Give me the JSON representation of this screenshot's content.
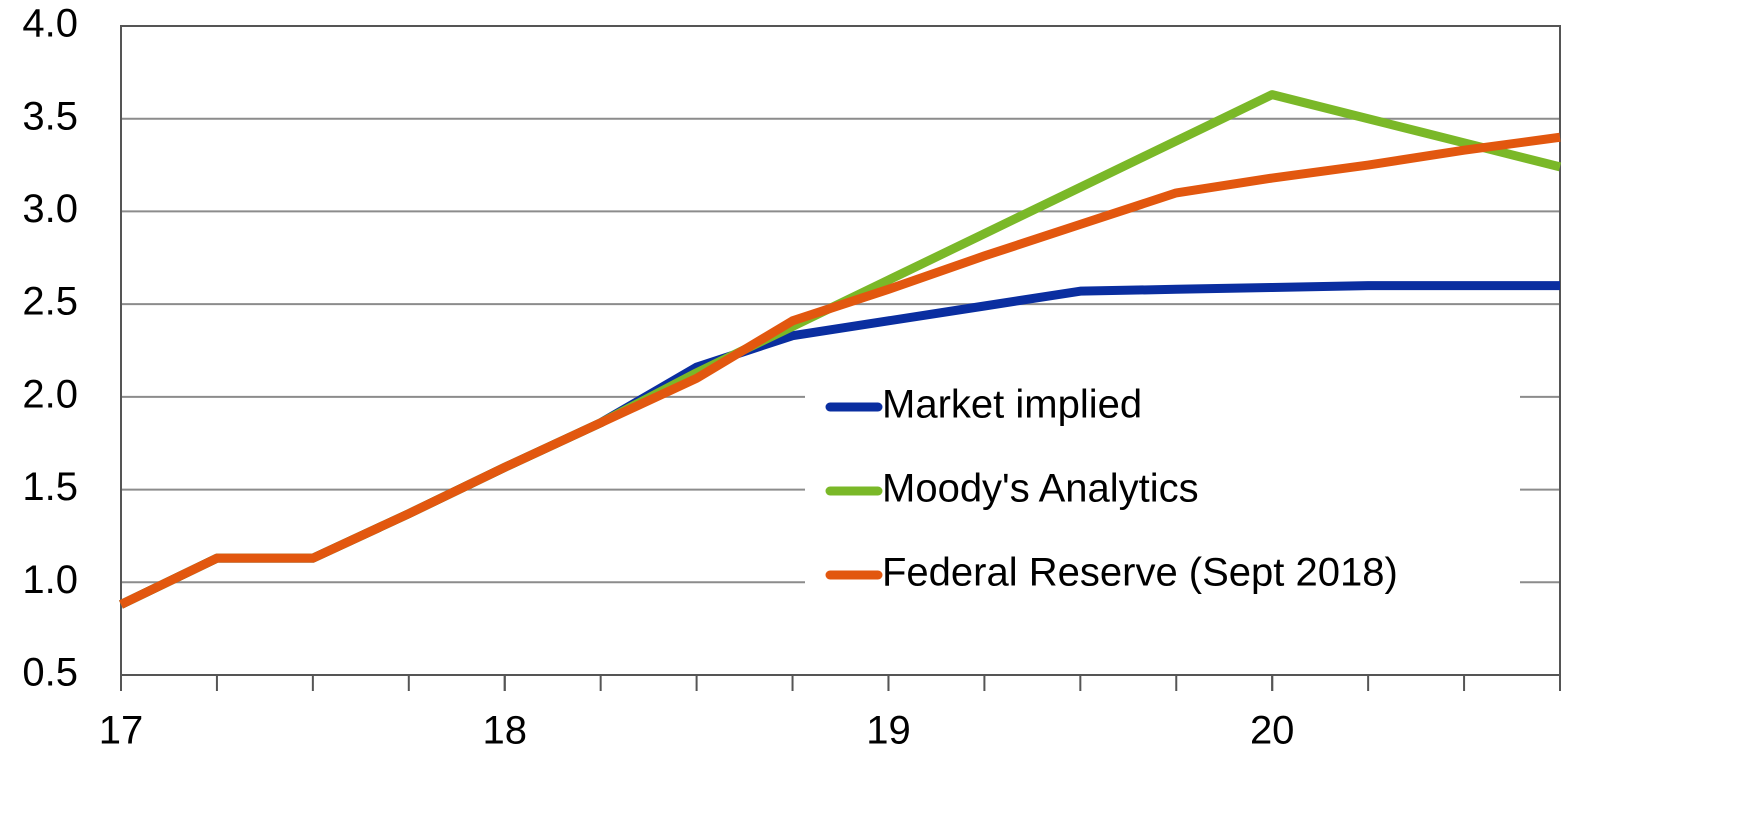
{
  "chart_data": {
    "type": "line",
    "x": [
      17,
      17.25,
      17.5,
      17.75,
      18,
      18.25,
      18.5,
      18.75,
      19,
      19.25,
      19.5,
      19.75,
      20,
      20.25,
      20.5,
      20.75
    ],
    "series": [
      {
        "name": "Market implied",
        "color": "#0a2ea0",
        "values": [
          0.88,
          1.13,
          1.13,
          1.37,
          1.62,
          1.86,
          2.16,
          2.33,
          2.41,
          2.49,
          2.57,
          2.58,
          2.59,
          2.6,
          2.6,
          2.6
        ]
      },
      {
        "name": "Moody's Analytics",
        "color": "#7ab828",
        "values": [
          0.88,
          1.13,
          1.13,
          1.37,
          1.62,
          1.86,
          2.13,
          2.38,
          2.63,
          2.88,
          3.13,
          3.38,
          3.63,
          3.5,
          3.37,
          3.24
        ]
      },
      {
        "name": "Federal Reserve (Sept 2018)",
        "color": "#e2570f",
        "values": [
          0.88,
          1.13,
          1.13,
          1.37,
          1.62,
          1.86,
          2.1,
          2.41,
          2.58,
          2.76,
          2.93,
          3.1,
          3.18,
          3.25,
          3.33,
          3.4
        ]
      }
    ],
    "xlim": [
      17,
      20.75
    ],
    "xticks": [
      17,
      18,
      19,
      20
    ],
    "ylim": [
      0.5,
      4.0
    ],
    "yticks": [
      {
        "value": 0.5,
        "label": "0.5"
      },
      {
        "value": 1.0,
        "label": "1.0"
      },
      {
        "value": 1.5,
        "label": "1.5"
      },
      {
        "value": 2.0,
        "label": "2.0"
      },
      {
        "value": 2.5,
        "label": "2.5"
      },
      {
        "value": 3.0,
        "label": "3.0"
      },
      {
        "value": 3.5,
        "label": "3.5"
      },
      {
        "value": 4.0,
        "label": "4.0"
      }
    ],
    "grid": true,
    "legend": "center-right"
  }
}
